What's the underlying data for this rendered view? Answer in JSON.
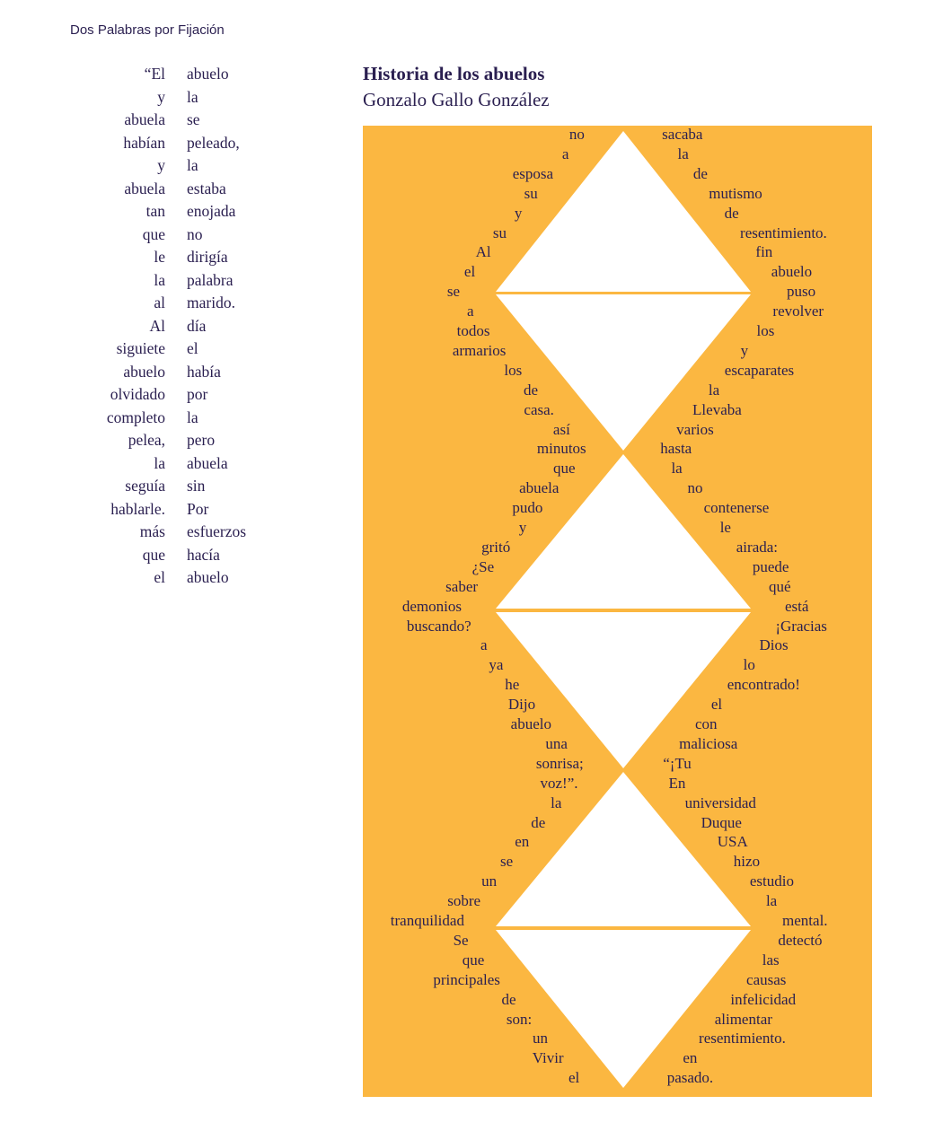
{
  "header": "Dos Palabras por Fijación",
  "left_column_a": [
    "“El",
    "y",
    "abuela",
    "habían",
    "y",
    "abuela",
    "tan",
    "que",
    "le",
    "la",
    "al",
    "Al",
    "siguiete",
    "abuelo",
    "olvidado",
    "completo",
    "pelea,",
    "la",
    "seguía",
    "hablarle.",
    "más",
    "que",
    "el"
  ],
  "left_column_b": [
    "abuelo",
    "la",
    "se",
    "peleado,",
    "la",
    "estaba",
    "enojada",
    "no",
    "dirigía",
    "palabra",
    "marido.",
    "día",
    "el",
    "había",
    "por",
    "la",
    "pero",
    "abuela",
    "sin",
    "Por",
    "esfuerzos",
    "hacía",
    "abuelo"
  ],
  "poem": {
    "title": "Historia de los abuelos",
    "author": "Gonzalo Gallo González",
    "left_words": [
      "no",
      "a",
      "esposa",
      "su",
      "y",
      "su",
      "Al",
      "el",
      "se",
      "a",
      "todos",
      "armarios",
      "los",
      "de",
      "casa.",
      "así",
      "minutos",
      "que",
      "abuela",
      "pudo",
      "y",
      "gritó",
      "¿Se",
      "saber",
      "demonios",
      "buscando?",
      "a",
      "ya",
      "he",
      "Dijo",
      "abuelo",
      "una",
      "sonrisa;",
      "voz!”.",
      "la",
      "de",
      "en",
      "se",
      "un",
      "sobre",
      "tranquilidad",
      "Se",
      "que",
      "principales",
      "de",
      "son:",
      "un",
      "Vivir",
      "el"
    ],
    "right_words": [
      "sacaba",
      "la",
      "de",
      "mutismo",
      "de",
      "resentimiento.",
      "fin",
      "abuelo",
      "puso",
      "revolver",
      "los",
      "y",
      "escaparates",
      "la",
      "Llevaba",
      "varios",
      "hasta",
      "la",
      "no",
      "contenerse",
      "le",
      "airada:",
      "puede",
      "qué",
      "está",
      "¡Gracias",
      "Dios",
      "lo",
      "encontrado!",
      "el",
      "con",
      "maliciosa",
      "“¡Tu",
      "En",
      "universidad",
      "Duque",
      "USA",
      "hizo",
      "estudio",
      "la",
      "mental.",
      "detectó",
      "las",
      "causas",
      "infelicidad",
      "alimentar",
      "resentimiento.",
      "en",
      "pasado."
    ]
  },
  "colors": {
    "panel": "#fbb741",
    "text": "#2a1f50",
    "shape": "#ffffff"
  }
}
